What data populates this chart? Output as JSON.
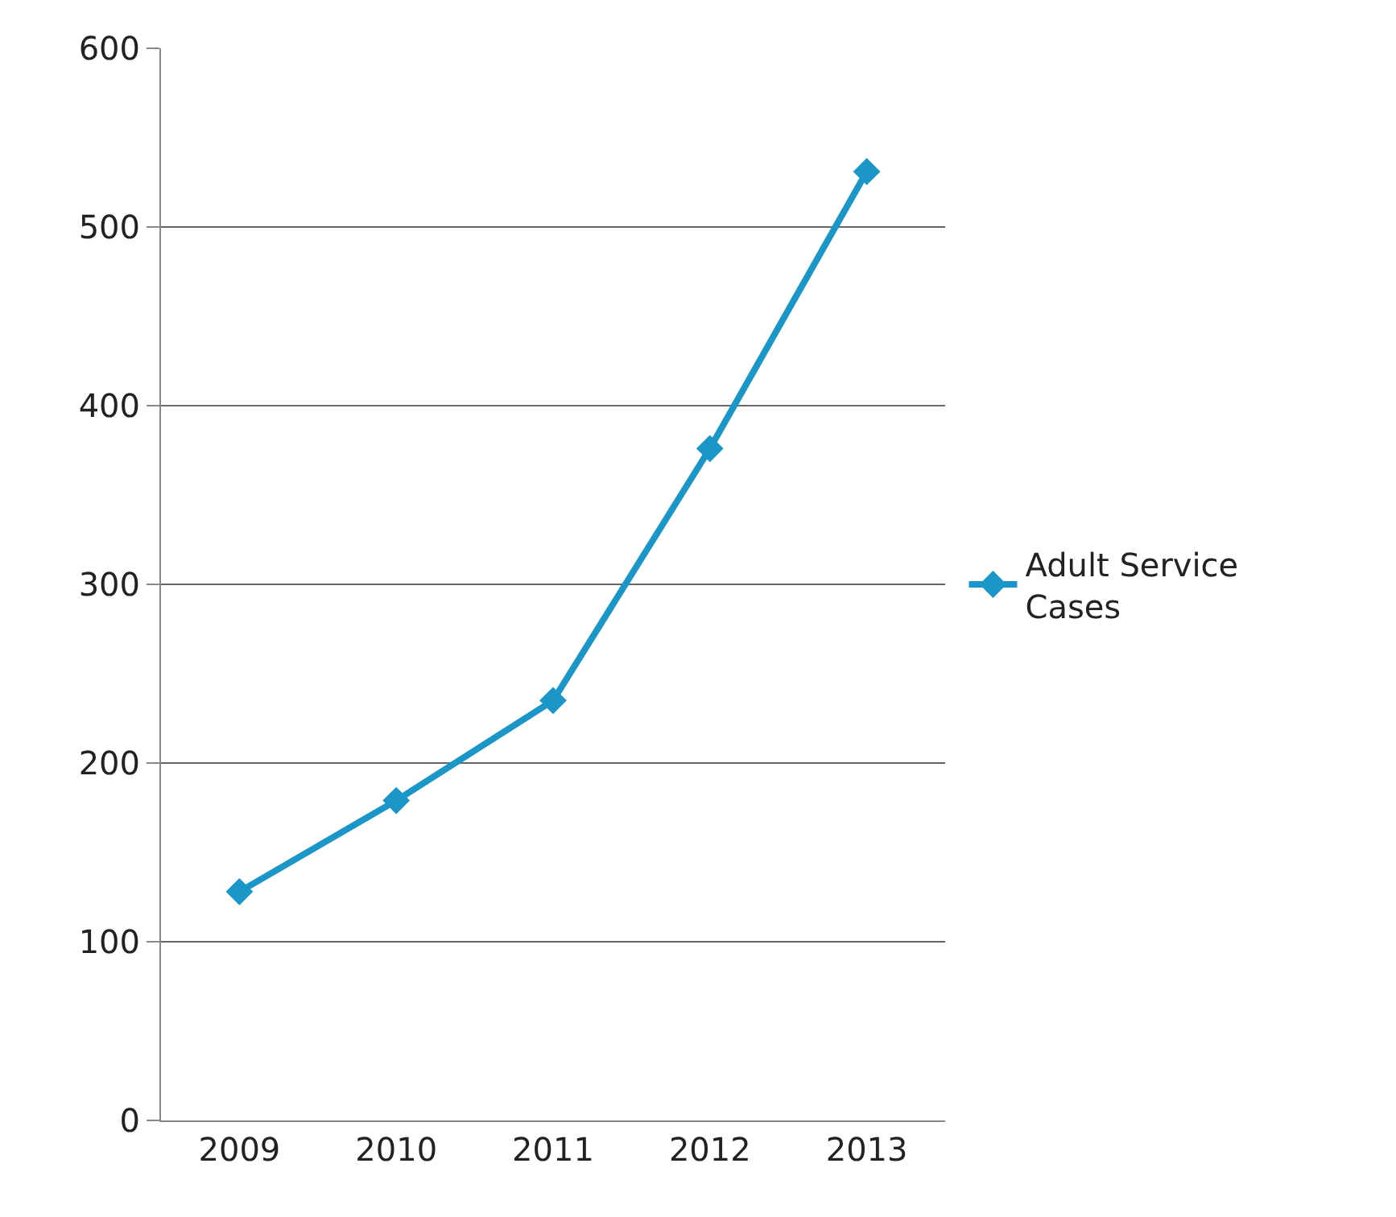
{
  "chart_data": {
    "type": "line",
    "categories": [
      "2009",
      "2010",
      "2011",
      "2012",
      "2013"
    ],
    "series": [
      {
        "name": "Adult Service Cases",
        "color": "#1a96c8",
        "values": [
          128,
          179,
          235,
          376,
          531
        ]
      }
    ],
    "ylim": [
      0,
      600
    ],
    "yticks": [
      0,
      100,
      200,
      300,
      400,
      500,
      600
    ],
    "grid": "y",
    "legend": "right",
    "marker": "diamond",
    "line_style": "solid"
  }
}
